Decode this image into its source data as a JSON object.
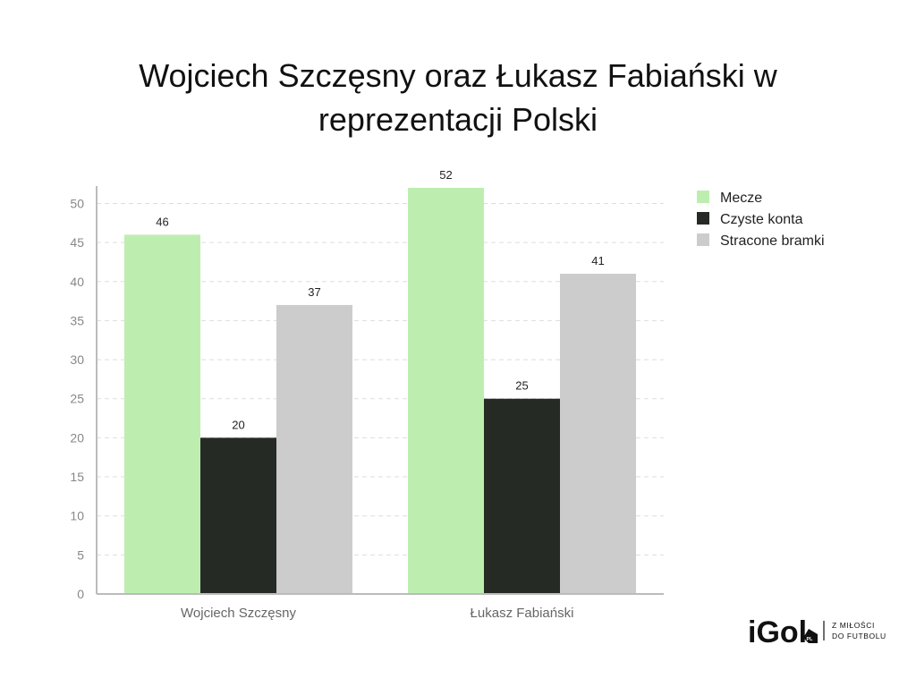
{
  "chart_data": {
    "type": "bar",
    "title_lines": [
      "Wojciech Szczęsny oraz Łukasz Fabiański w",
      "reprezentacji Polski"
    ],
    "categories": [
      "Wojciech Szczęsny",
      "Łukasz Fabiański"
    ],
    "series": [
      {
        "name": "Mecze",
        "color": "#bdeeb0",
        "values": [
          46,
          52
        ]
      },
      {
        "name": "Czyste konta",
        "color": "#262a24",
        "values": [
          20,
          25
        ]
      },
      {
        "name": "Stracone bramki",
        "color": "#cccccc",
        "values": [
          37,
          41
        ]
      }
    ],
    "ylim": [
      0,
      52
    ],
    "yticks": [
      0,
      5,
      10,
      15,
      20,
      25,
      30,
      35,
      40,
      45,
      50
    ],
    "grid": true,
    "legend_position": "right"
  },
  "logo": {
    "text": "iGol",
    "badge": "PL",
    "tagline_lines": [
      "Z MIŁOŚCI",
      "DO FUTBOLU"
    ]
  }
}
